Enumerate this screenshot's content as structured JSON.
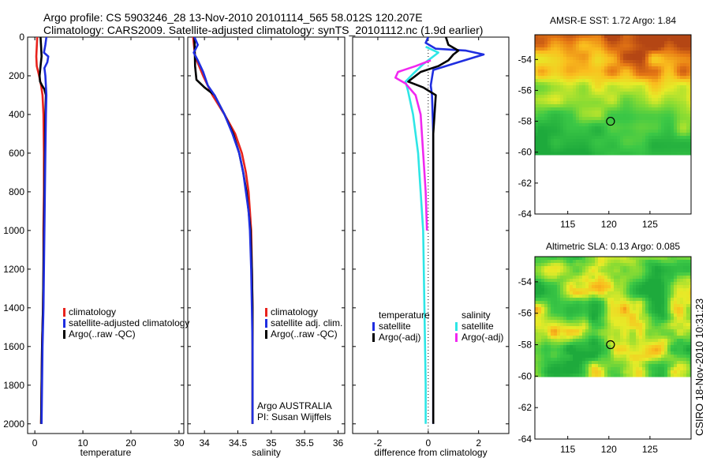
{
  "header": {
    "line1": "Argo profile: CS 5903246_28 13-Nov-2010 20101114_565 58.012S 120.207E",
    "line2": "Climatology: CARS2009. Satellite-adjusted climatology: synTS_20101112.nc (1.9d earlier)"
  },
  "footer": {
    "vertical_stamp": "CSIRO 18-Nov-2010 10:31:23"
  },
  "colors": {
    "red": "#e8231d",
    "blue": "#1f2ee0",
    "black": "#000000",
    "cyan": "#2ee6e6",
    "magenta": "#f028f0"
  },
  "chart_data": [
    {
      "id": "temperature",
      "type": "line",
      "xlabel": "temperature",
      "xlim": [
        -1.5,
        31
      ],
      "ylim": [
        2050,
        0
      ],
      "xticks": [
        0,
        10,
        20,
        30
      ],
      "yticks": [
        0,
        200,
        400,
        600,
        800,
        1000,
        1200,
        1400,
        1600,
        1800,
        2000
      ],
      "legend": {
        "position": "lower-right",
        "entries": [
          "climatology",
          "satellite-adjusted climatology",
          "Argo(..raw -QC)"
        ]
      },
      "series": [
        {
          "name": "climatology",
          "color": "red",
          "points": [
            [
              0.5,
              0
            ],
            [
              0.4,
              50
            ],
            [
              0.3,
              100
            ],
            [
              0.4,
              150
            ],
            [
              0.9,
              200
            ],
            [
              1.3,
              250
            ],
            [
              1.6,
              300
            ],
            [
              1.8,
              400
            ],
            [
              1.9,
              600
            ],
            [
              1.9,
              800
            ],
            [
              1.8,
              1000
            ],
            [
              1.8,
              1200
            ],
            [
              1.7,
              1400
            ],
            [
              1.5,
              1600
            ],
            [
              1.4,
              1800
            ],
            [
              1.3,
              2000
            ]
          ]
        },
        {
          "name": "Argo(..raw -QC)",
          "color": "black",
          "points": [
            [
              1.2,
              0
            ],
            [
              1.3,
              50
            ],
            [
              1.4,
              100
            ],
            [
              1.2,
              150
            ],
            [
              1.0,
              200
            ],
            [
              1.1,
              230
            ],
            [
              1.5,
              250
            ],
            [
              2.0,
              270
            ],
            [
              2.3,
              300
            ],
            [
              2.2,
              400
            ],
            [
              2.1,
              600
            ],
            [
              2.0,
              800
            ],
            [
              1.9,
              1000
            ],
            [
              1.8,
              1200
            ],
            [
              1.7,
              1400
            ],
            [
              1.5,
              1600
            ],
            [
              1.4,
              1800
            ],
            [
              1.3,
              2000
            ]
          ]
        },
        {
          "name": "satellite-adjusted climatology",
          "color": "blue",
          "points": [
            [
              2.4,
              0
            ],
            [
              2.2,
              40
            ],
            [
              1.9,
              80
            ],
            [
              2.8,
              100
            ],
            [
              2.6,
              130
            ],
            [
              2.0,
              160
            ],
            [
              2.2,
              200
            ],
            [
              2.4,
              300
            ],
            [
              2.3,
              400
            ],
            [
              2.2,
              600
            ],
            [
              2.1,
              800
            ],
            [
              2.0,
              1000
            ],
            [
              1.9,
              1200
            ],
            [
              1.8,
              1400
            ],
            [
              1.6,
              1600
            ],
            [
              1.5,
              1800
            ],
            [
              1.4,
              2000
            ]
          ]
        }
      ]
    },
    {
      "id": "salinity",
      "type": "line",
      "xlabel": "salinity",
      "xlim": [
        33.75,
        36.1
      ],
      "ylim": [
        2050,
        0
      ],
      "xticks": [
        34,
        34.5,
        35,
        35.5,
        36
      ],
      "xticklabels": [
        "34",
        "34.5",
        "35",
        "35.5",
        "36"
      ],
      "legend": {
        "position": "lower-right",
        "entries": [
          "climatology",
          "satellite adj. clim.",
          "Argo(..raw -QC)"
        ]
      },
      "annotation": [
        "Argo AUSTRALIA",
        "PI: Susan Wijffels"
      ],
      "series": [
        {
          "name": "climatology",
          "color": "red",
          "points": [
            [
              33.83,
              0
            ],
            [
              33.86,
              100
            ],
            [
              33.98,
              200
            ],
            [
              34.12,
              300
            ],
            [
              34.3,
              400
            ],
            [
              34.46,
              500
            ],
            [
              34.56,
              600
            ],
            [
              34.62,
              700
            ],
            [
              34.66,
              800
            ],
            [
              34.68,
              900
            ],
            [
              34.7,
              1000
            ],
            [
              34.71,
              1200
            ],
            [
              34.72,
              1400
            ],
            [
              34.72,
              1600
            ],
            [
              34.72,
              2000
            ]
          ]
        },
        {
          "name": "Argo(..raw -QC)",
          "color": "black",
          "points": [
            [
              33.85,
              0
            ],
            [
              33.86,
              150
            ],
            [
              33.88,
              220
            ],
            [
              34.0,
              260
            ],
            [
              34.15,
              300
            ],
            [
              34.3,
              400
            ],
            [
              34.43,
              500
            ],
            [
              34.52,
              600
            ],
            [
              34.58,
              700
            ],
            [
              34.63,
              800
            ],
            [
              34.66,
              900
            ],
            [
              34.69,
              1000
            ],
            [
              34.71,
              1200
            ],
            [
              34.72,
              1400
            ],
            [
              34.72,
              1600
            ],
            [
              34.72,
              2000
            ]
          ]
        },
        {
          "name": "satellite adj. clim.",
          "color": "blue",
          "points": [
            [
              33.85,
              0
            ],
            [
              33.9,
              40
            ],
            [
              33.84,
              80
            ],
            [
              33.9,
              120
            ],
            [
              33.98,
              180
            ],
            [
              34.05,
              250
            ],
            [
              34.15,
              300
            ],
            [
              34.3,
              400
            ],
            [
              34.42,
              500
            ],
            [
              34.52,
              600
            ],
            [
              34.58,
              700
            ],
            [
              34.62,
              800
            ],
            [
              34.66,
              900
            ],
            [
              34.68,
              1000
            ],
            [
              34.7,
              1200
            ],
            [
              34.71,
              1400
            ],
            [
              34.72,
              1600
            ],
            [
              34.72,
              2000
            ]
          ]
        }
      ]
    },
    {
      "id": "difference",
      "type": "line",
      "xlabel": "difference from climatology",
      "xlim": [
        -3,
        3.2
      ],
      "ylim": [
        2050,
        0
      ],
      "xticks": [
        -2,
        0,
        2
      ],
      "reference_line_x": 0,
      "legend_groups": [
        {
          "title": "temperature",
          "entries": [
            "satellite",
            "Argo(-adj)"
          ]
        },
        {
          "title": "salinity",
          "entries": [
            "satellite",
            "Argo(-adj)"
          ]
        }
      ],
      "series": [
        {
          "name": "satellite",
          "group": "temperature",
          "color": "blue",
          "points": [
            [
              0.0,
              0
            ],
            [
              -0.1,
              30
            ],
            [
              0.3,
              60
            ],
            [
              1.5,
              70
            ],
            [
              2.2,
              90
            ],
            [
              1.2,
              130
            ],
            [
              0.2,
              170
            ],
            [
              0.1,
              250
            ],
            [
              0.15,
              300
            ],
            [
              0.2,
              500
            ],
            [
              0.2,
              1000
            ],
            [
              0.2,
              1500
            ],
            [
              0.2,
              2000
            ]
          ]
        },
        {
          "name": "Argo(-adj)",
          "group": "temperature",
          "color": "black",
          "points": [
            [
              0.7,
              0
            ],
            [
              0.8,
              40
            ],
            [
              1.2,
              70
            ],
            [
              1.0,
              90
            ],
            [
              0.8,
              120
            ],
            [
              0.4,
              150
            ],
            [
              -0.3,
              180
            ],
            [
              -0.8,
              230
            ],
            [
              -0.2,
              260
            ],
            [
              0.3,
              300
            ],
            [
              0.2,
              500
            ],
            [
              0.2,
              1000
            ],
            [
              0.2,
              1500
            ],
            [
              0.2,
              2000
            ]
          ]
        },
        {
          "name": "satellite",
          "group": "salinity",
          "color": "cyan",
          "points": [
            [
              -0.1,
              50
            ],
            [
              0.4,
              80
            ],
            [
              -0.2,
              140
            ],
            [
              -0.6,
              190
            ],
            [
              -0.9,
              230
            ],
            [
              -0.8,
              280
            ],
            [
              -0.6,
              400
            ],
            [
              -0.4,
              600
            ],
            [
              -0.3,
              800
            ],
            [
              -0.2,
              1000
            ],
            [
              -0.15,
              1400
            ],
            [
              -0.1,
              1800
            ],
            [
              -0.1,
              2000
            ]
          ]
        },
        {
          "name": "Argo(-adj)",
          "group": "salinity",
          "color": "magenta",
          "points": [
            [
              0.1,
              120
            ],
            [
              -0.5,
              150
            ],
            [
              -1.2,
              180
            ],
            [
              -1.3,
              210
            ],
            [
              -0.9,
              240
            ],
            [
              -0.5,
              300
            ],
            [
              -0.3,
              400
            ],
            [
              -0.2,
              600
            ],
            [
              -0.1,
              800
            ],
            [
              -0.05,
              1000
            ]
          ]
        }
      ]
    },
    {
      "id": "sst_map",
      "type": "heatmap",
      "title": "AMSR-E SST: 1.72 Argo: 1.84",
      "xlim": [
        111,
        130
      ],
      "ylim": [
        -64,
        -52.4
      ],
      "xticks": [
        115,
        120,
        125
      ],
      "yticks": [
        -54,
        -56,
        -58,
        -60,
        -62,
        -64
      ],
      "data_lat_range": [
        -60,
        -52.4
      ],
      "marker": {
        "lon": 120.2,
        "lat": -58.0
      }
    },
    {
      "id": "sla_map",
      "type": "heatmap",
      "title": "Altimetric SLA: 0.13 Argo: 0.085",
      "xlim": [
        111,
        130
      ],
      "ylim": [
        -64,
        -52.4
      ],
      "xticks": [
        115,
        120,
        125
      ],
      "yticks": [
        -54,
        -56,
        -58,
        -60,
        -62,
        -64
      ],
      "data_lat_range": [
        -60,
        -52.4
      ],
      "marker": {
        "lon": 120.2,
        "lat": -58.0
      }
    }
  ]
}
